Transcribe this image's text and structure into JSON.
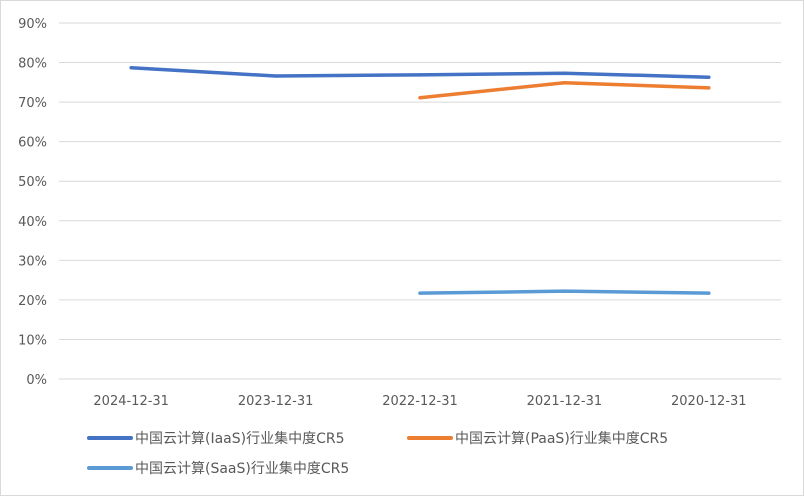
{
  "chart_data": {
    "type": "line",
    "title": "",
    "xlabel": "",
    "ylabel": "",
    "categories": [
      "2024-12-31",
      "2023-12-31",
      "2022-12-31",
      "2021-12-31",
      "2020-12-31"
    ],
    "ylim": [
      0,
      90
    ],
    "y_ticks": [
      "0%",
      "10%",
      "20%",
      "30%",
      "40%",
      "50%",
      "60%",
      "70%",
      "80%",
      "90%"
    ],
    "y_unit": "%",
    "grid": true,
    "legend_position": "bottom",
    "series": [
      {
        "name": "中国云计算(IaaS)行业集中度CR5",
        "color": "#4472c4",
        "values": [
          78.7,
          76.6,
          76.9,
          77.3,
          76.3
        ]
      },
      {
        "name": "中国云计算(PaaS)行业集中度CR5",
        "color": "#ed7d31",
        "values": [
          null,
          null,
          71.1,
          74.9,
          73.6
        ]
      },
      {
        "name": "中国云计算(SaaS)行业集中度CR5",
        "color": "#5b9bd5",
        "values": [
          null,
          null,
          21.7,
          22.2,
          21.7
        ]
      }
    ]
  }
}
